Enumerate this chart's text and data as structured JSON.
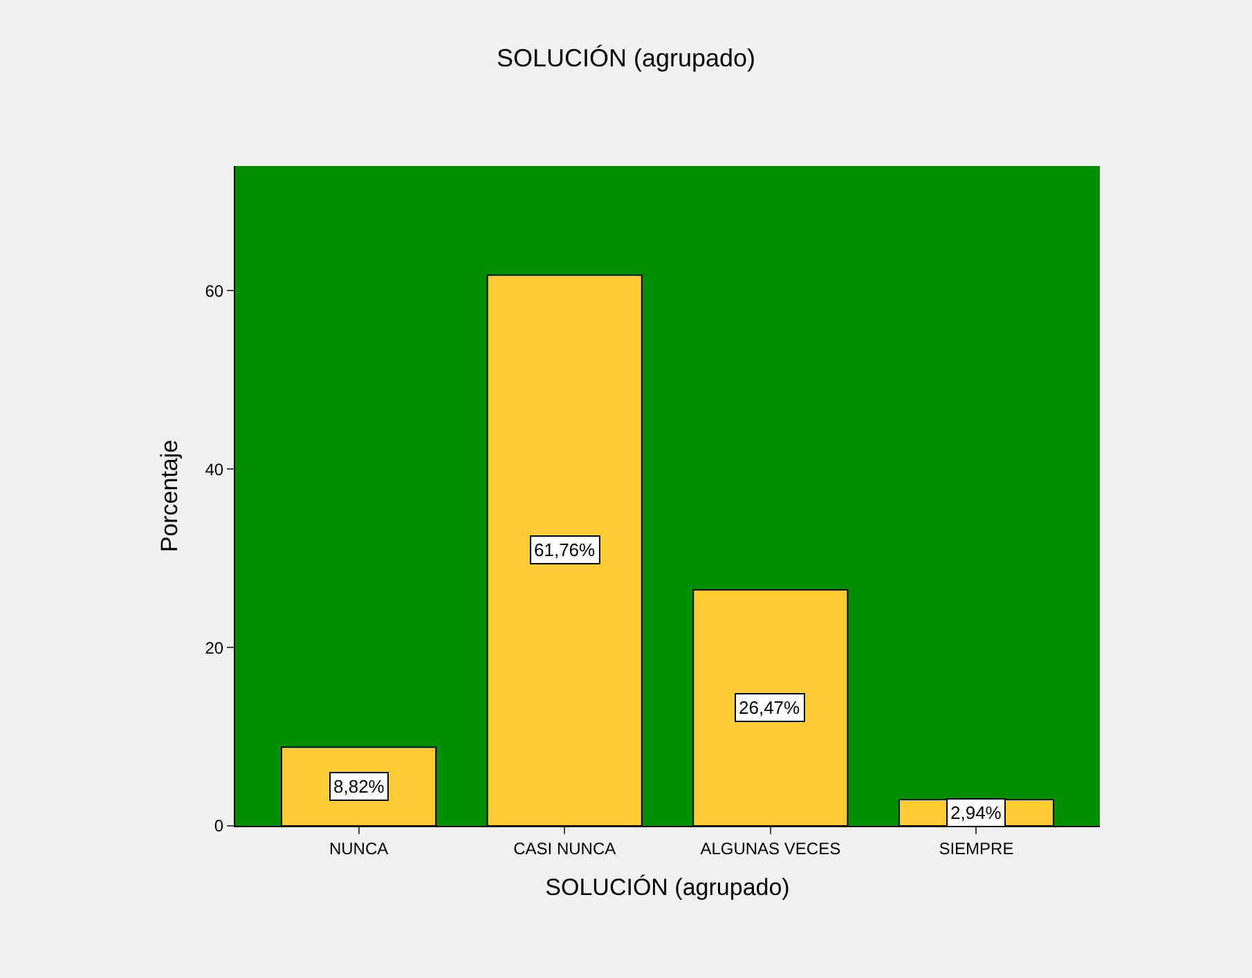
{
  "chart_data": {
    "type": "bar",
    "title": "SOLUCIÓN (agrupado)",
    "xlabel": "SOLUCIÓN (agrupado)",
    "ylabel": "Porcentaje",
    "categories": [
      "NUNCA",
      "CASI NUNCA",
      "ALGUNAS VECES",
      "SIEMPRE"
    ],
    "values": [
      8.82,
      61.76,
      26.47,
      2.94
    ],
    "value_labels": [
      "8,82%",
      "61,76%",
      "26,47%",
      "2,94%"
    ],
    "color": "#ffcc33",
    "ylim": [
      0,
      74
    ],
    "yticks": [
      0,
      20,
      40,
      60
    ],
    "grid": false
  }
}
